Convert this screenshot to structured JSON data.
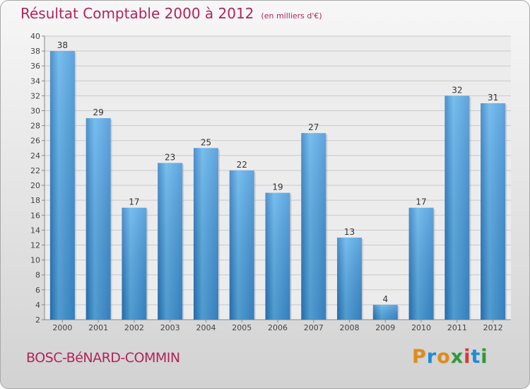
{
  "chart_data": {
    "type": "bar",
    "title": "Résultat Comptable 2000 à 2012",
    "subtitle": "(en milliers d'€)",
    "categories": [
      "2000",
      "2001",
      "2002",
      "2003",
      "2004",
      "2005",
      "2006",
      "2007",
      "2008",
      "2009",
      "2010",
      "2011",
      "2012"
    ],
    "values": [
      38,
      29,
      17,
      23,
      25,
      22,
      19,
      27,
      13,
      4,
      17,
      32,
      31
    ],
    "ylim": [
      2,
      40
    ],
    "yticks": [
      2,
      4,
      6,
      8,
      10,
      12,
      14,
      16,
      18,
      20,
      22,
      24,
      26,
      28,
      30,
      32,
      34,
      36,
      38,
      40
    ],
    "grid": true,
    "xlabel": "",
    "ylabel": "",
    "bar_color": "#3d8fd6",
    "bar_highlight": "#5ab0ea",
    "bar_shadow": "#2a78c0"
  },
  "location": "BOSC-BéNARD-COMMIN",
  "brand": {
    "letters": [
      "P",
      "r",
      "o",
      "x",
      "i",
      "t",
      "i"
    ],
    "colors": [
      "#e08b1a",
      "#1b8ed8",
      "#e08b1a",
      "#2e9a3a",
      "#d63a3a",
      "#1b8ed8",
      "#2e9a3a"
    ]
  },
  "colors": {
    "title": "#b0245a",
    "axis_text": "#444444",
    "grid": "#c9c9c9"
  }
}
